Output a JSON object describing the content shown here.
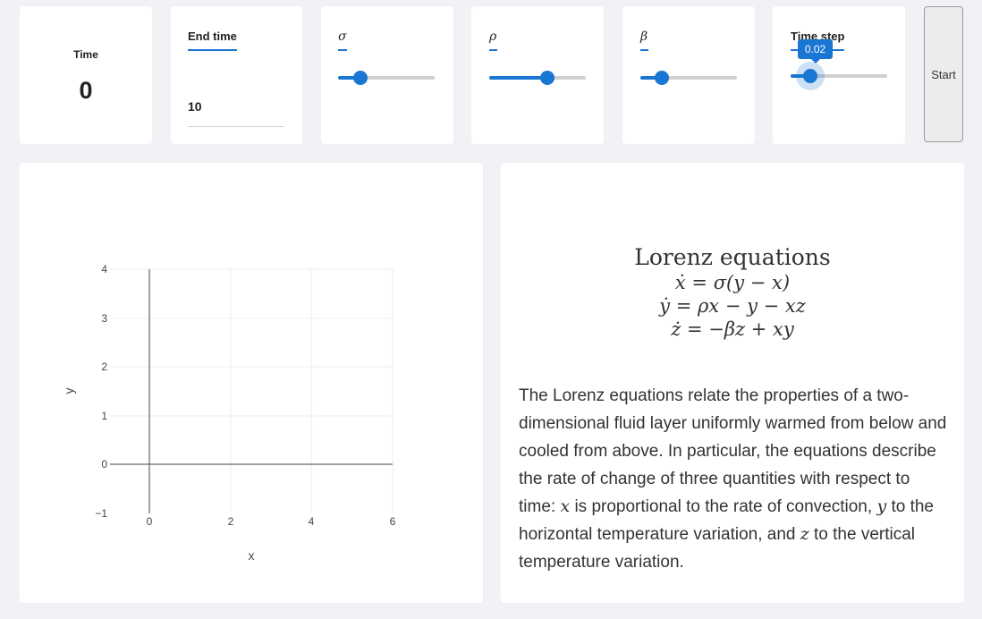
{
  "time_card": {
    "label": "Time",
    "value": "0"
  },
  "end_time": {
    "label": "End time",
    "value": "10"
  },
  "sigma": {
    "label": "σ",
    "fraction": 0.23
  },
  "rho": {
    "label": "ρ",
    "fraction": 0.6
  },
  "beta": {
    "label": "β",
    "fraction": 0.22
  },
  "time_step": {
    "label": "Time step",
    "value": "0.02",
    "fraction": 0.2
  },
  "start_button": {
    "label": "Start"
  },
  "plot": {
    "xlabel": "x",
    "ylabel": "y",
    "x_ticks": [
      "0",
      "2",
      "4",
      "6"
    ],
    "y_ticks": [
      "4",
      "3",
      "2",
      "1",
      "0",
      "−1"
    ]
  },
  "chart_data": {
    "type": "line",
    "series": [],
    "xlabel": "x",
    "ylabel": "y",
    "xlim": [
      -1,
      6
    ],
    "ylim": [
      -1,
      4
    ],
    "grid": true
  },
  "equations": {
    "title": "Lorenz equations",
    "lines": [
      "ẋ = σ(y − x)",
      "ẏ = ρx − y − xz",
      "ż = −βz + xy"
    ]
  },
  "description": {
    "part1": "The Lorenz equations relate the properties of a two-dimensional fluid layer uniformly warmed from below and cooled from above. In particular, the equations describe the rate of change of three quantities with respect to time: ",
    "var_x": "x",
    "part2": " is proportional to the rate of convection, ",
    "var_y": "y",
    "part3": " to the horizontal temperature variation, and ",
    "var_z": "z",
    "part4": " to the vertical temperature variation."
  }
}
